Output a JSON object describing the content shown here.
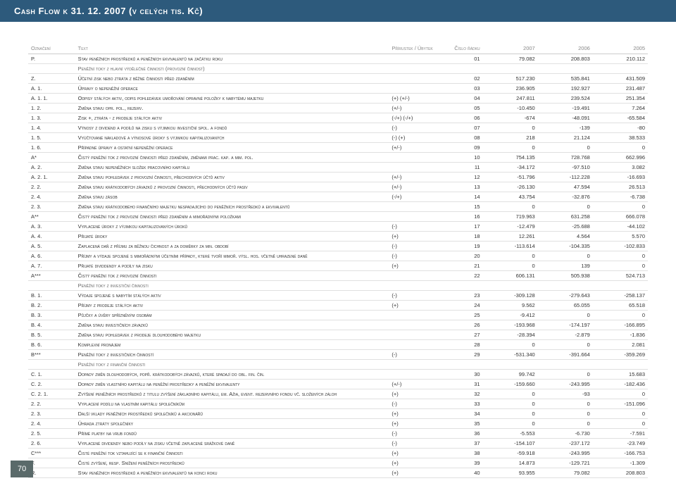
{
  "title": "Cash Flow k 31. 12. 2007 (v celých tis. Kč)",
  "pageNumber": "70",
  "columns": [
    "Označení",
    "Text",
    "Přírustek / Úbytek",
    "Číslo řádku",
    "2007",
    "2006",
    "2005"
  ],
  "rows": [
    {
      "code": "P.",
      "text": "Stav peněžních prostředků a peněžních ekvivalentů na začátku roku",
      "sign": "",
      "row": "01",
      "v1": "79.082",
      "v2": "208.803",
      "v3": "210.112"
    },
    {
      "code": "",
      "text": "Peněžní toky z hlavní výdělečné činnosti (provozní činnost)",
      "sign": "",
      "row": "",
      "v1": "",
      "v2": "",
      "v3": "",
      "section": true
    },
    {
      "code": "Z.",
      "text": "Účetní zisk nebo ztráta z běžné činnosti před zdaněním",
      "sign": "",
      "row": "02",
      "v1": "517.230",
      "v2": "535.841",
      "v3": "431.509"
    },
    {
      "code": "A. 1.",
      "text": "Úpravy o nepeněžní operace",
      "sign": "",
      "row": "03",
      "v1": "236.905",
      "v2": "192.927",
      "v3": "231.487"
    },
    {
      "code": "A. 1. 1.",
      "text": "Odpisy stálých aktiv, odpis pohledávek umořování opravné položky k nabytému majetku",
      "sign": "(+)  (+/-)",
      "row": "04",
      "v1": "247.811",
      "v2": "239.524",
      "v3": "251.354"
    },
    {
      "code": "1. 2.",
      "text": "Změna stavu opr. pol., rezerv.",
      "sign": "(+/-)",
      "row": "05",
      "v1": "-10.450",
      "v2": "-19.491",
      "v3": "7.264"
    },
    {
      "code": "1. 3.",
      "text": "Zisk +, ztráta - z prodeje stálých aktiv",
      "sign": "(-/+)  (-/+)",
      "row": "06",
      "v1": "-674",
      "v2": "-48.091",
      "v3": "-65.584"
    },
    {
      "code": "1. 4.",
      "text": "Výnosy z dividend a podílů na zisku s výjimkou investiční spol. a fondů",
      "sign": "(-)",
      "row": "07",
      "v1": "0",
      "v2": "-139",
      "v3": "-80"
    },
    {
      "code": "1. 5.",
      "text": "Vyúčtované nákladové a výnosové úroky s výjimkou kapitalizovaných",
      "sign": "(-)  (+)",
      "row": "08",
      "v1": "218",
      "v2": "21.124",
      "v3": "38.533"
    },
    {
      "code": "1. 6.",
      "text": "Případné úpravy a ostatní nepeněžní operace",
      "sign": "(+/-)",
      "row": "09",
      "v1": "0",
      "v2": "0",
      "v3": "0"
    },
    {
      "code": "A*",
      "text": "Čistý peněžní tok z provozní činnosti před zdaněním, změnami prac. kap. a mim. pol.",
      "sign": "",
      "row": "10",
      "v1": "754.135",
      "v2": "728.768",
      "v3": "662.996"
    },
    {
      "code": "A. 2.",
      "text": "Změna stavu nepeněžních složek pracovního kapitálu",
      "sign": "",
      "row": "11",
      "v1": "-34.172",
      "v2": "-97.510",
      "v3": "3.082"
    },
    {
      "code": "A. 2. 1.",
      "text": "Změna stavu pohledávek z provozní činnosti, přechodných účtů aktiv",
      "sign": "(+/-)",
      "row": "12",
      "v1": "-51.796",
      "v2": "-112.228",
      "v3": "-16.693"
    },
    {
      "code": "2. 2.",
      "text": "Změna stavu krátkodobých závazků z provozní činnosti, přechodných účtů pasiv",
      "sign": "(+/-)",
      "row": "13",
      "v1": "-26.130",
      "v2": "47.594",
      "v3": "26.513"
    },
    {
      "code": "2. 4.",
      "text": "Změna stavu zásob",
      "sign": "(-/+)",
      "row": "14",
      "v1": "43.754",
      "v2": "-32.876",
      "v3": "-6.738"
    },
    {
      "code": "2. 3.",
      "text": "Změna stavu krátkodobého finančního majetku nespadajícího do peněžních prostředků a ekvivalentů",
      "sign": "",
      "row": "15",
      "v1": "0",
      "v2": "0",
      "v3": "0"
    },
    {
      "code": "A**",
      "text": "Čistý peněžní tok z provozní činnosti před zdaněním a mimořádnými položkami",
      "sign": "",
      "row": "16",
      "v1": "719.963",
      "v2": "631.258",
      "v3": "666.078"
    },
    {
      "code": "A. 3.",
      "text": "Vyplacené úroky z výjimkou kapitalizovaných úroků",
      "sign": "(-)",
      "row": "17",
      "v1": "-12.479",
      "v2": "-25.688",
      "v3": "-44.102"
    },
    {
      "code": "A. 4.",
      "text": "Přijaté úroky",
      "sign": "(+)",
      "row": "18",
      "v1": "12.261",
      "v2": "4.564",
      "v3": "5.570"
    },
    {
      "code": "A. 5.",
      "text": "Zaplacená daň z příjmu za běžnou čichnost a za doměrky za min. období",
      "sign": "(-)",
      "row": "19",
      "v1": "-113.614",
      "v2": "-104.335",
      "v3": "-102.833"
    },
    {
      "code": "A. 6.",
      "text": "Příjmy a výdaje spojené s mimořádnými účetními případy, které tvoří mimoř. výsl. hos. včetně uhrazené daně",
      "sign": "(-)",
      "row": "20",
      "v1": "0",
      "v2": "0",
      "v3": "0"
    },
    {
      "code": "A. 7.",
      "text": "Přijaté dividdendy a podíly na zisku",
      "sign": "(+)",
      "row": "21",
      "v1": "0",
      "v2": "139",
      "v3": "0"
    },
    {
      "code": "A***",
      "text": "Čistý peněžní tok z provozní činnosti",
      "sign": "",
      "row": "22",
      "v1": "606.131",
      "v2": "505.938",
      "v3": "524.713"
    },
    {
      "code": "",
      "text": "Peněžní toky z investiční činnosti",
      "sign": "",
      "row": "",
      "v1": "",
      "v2": "",
      "v3": "",
      "section": true
    },
    {
      "code": "B. 1.",
      "text": "Výdaje spojené s nabytím stálých aktiv",
      "sign": "(-)",
      "row": "23",
      "v1": "-309.128",
      "v2": "-279.643",
      "v3": "-258.137"
    },
    {
      "code": "B. 2.",
      "text": "Příjmy  z prodeje stálých aktiv",
      "sign": "(+)",
      "row": "24",
      "v1": "9.562",
      "v2": "65.055",
      "v3": "65.518"
    },
    {
      "code": "B. 3.",
      "text": "Půjčky a úvěry spřízněným osobám",
      "sign": "",
      "row": "25",
      "v1": "-9.412",
      "v2": "0",
      "v3": "0"
    },
    {
      "code": "B. 4.",
      "text": "Změna stavu investičních závazků",
      "sign": "",
      "row": "26",
      "v1": "-193.968",
      "v2": "-174.197",
      "v3": "-166.895"
    },
    {
      "code": "B. 5.",
      "text": "Změna stavu pohledávek z prodeje dlouhodobého majetku",
      "sign": "",
      "row": "27",
      "v1": "-28.394",
      "v2": "-2.879",
      "v3": "-1.836"
    },
    {
      "code": "B. 6.",
      "text": "Komplexní pronájem",
      "sign": "",
      "row": "28",
      "v1": "0",
      "v2": "0",
      "v3": "2.081"
    },
    {
      "code": "B***",
      "text": "Peněžní toky z investičních činností",
      "sign": "(-)",
      "row": "29",
      "v1": "-531.340",
      "v2": "-391.664",
      "v3": "-359.269"
    },
    {
      "code": "",
      "text": "Peněžní toky z finanční činnosti",
      "sign": "",
      "row": "",
      "v1": "",
      "v2": "",
      "v3": "",
      "section": true
    },
    {
      "code": "C. 1.",
      "text": "Dopady změn dlouhodobých, popř. krátkodobých závazků, které spadají do obl. fin. čin.",
      "sign": "",
      "row": "30",
      "v1": "99.742",
      "v2": "0",
      "v3": "15.683"
    },
    {
      "code": "C. 2.",
      "text": "Dopady změn vlastního kapitálu na peněžní prostředky a peněžní ekvivalenty",
      "sign": "(+/-)",
      "row": "31",
      "v1": "-159.660",
      "v2": "-243.995",
      "v3": "-182.436"
    },
    {
      "code": "C. 2. 1.",
      "text": "Zvýšení peněžních prostředků z titulu zvýšení základního kapitálu, em. Ažia, event. rezervního fondu vč. složených záloh",
      "sign": "(+)",
      "row": "32",
      "v1": "0",
      "v2": "-93",
      "v3": "0"
    },
    {
      "code": "2. 2.",
      "text": "Vyplacení podílu na vlastním kapitálu společníkům",
      "sign": "(-)",
      "row": "33",
      "v1": "0",
      "v2": "0",
      "v3": "-151.096"
    },
    {
      "code": "2. 3.",
      "text": "Další vklady peněžních prostředků společníků a akcionářů",
      "sign": "(+)",
      "row": "34",
      "v1": "0",
      "v2": "0",
      "v3": "0"
    },
    {
      "code": "2. 4.",
      "text": "Úhrada ztráty společníky",
      "sign": "(+)",
      "row": "35",
      "v1": "0",
      "v2": "0",
      "v3": "0"
    },
    {
      "code": "2. 5.",
      "text": "Přímé platby na vrub fondů",
      "sign": "(-)",
      "row": "36",
      "v1": "-5.553",
      "v2": "-6.730",
      "v3": "-7.591"
    },
    {
      "code": "2. 6.",
      "text": "Vyplacené dividendy nebo podíly na zisku včetně zaplacené srážkové daně",
      "sign": "(-)",
      "row": "37",
      "v1": "-154.107",
      "v2": "-237.172",
      "v3": "-23.749"
    },
    {
      "code": "C***",
      "text": "Čisté peněžní tok vztahující se k finanční činnosti",
      "sign": "(+)",
      "row": "38",
      "v1": "-59.918",
      "v2": "-243.995",
      "v3": "-166.753"
    },
    {
      "code": "F.",
      "text": "Čisté zvýšení, resp. Snížení peněžních prostředků",
      "sign": "(+)",
      "row": "39",
      "v1": "14.873",
      "v2": "-129.721",
      "v3": "-1.309"
    },
    {
      "code": "R.",
      "text": "Stav peněžních prostředků a peněžních ekvivalentů na konci roku",
      "sign": "(+)",
      "row": "40",
      "v1": "93.955",
      "v2": "79.082",
      "v3": "208.803"
    }
  ]
}
